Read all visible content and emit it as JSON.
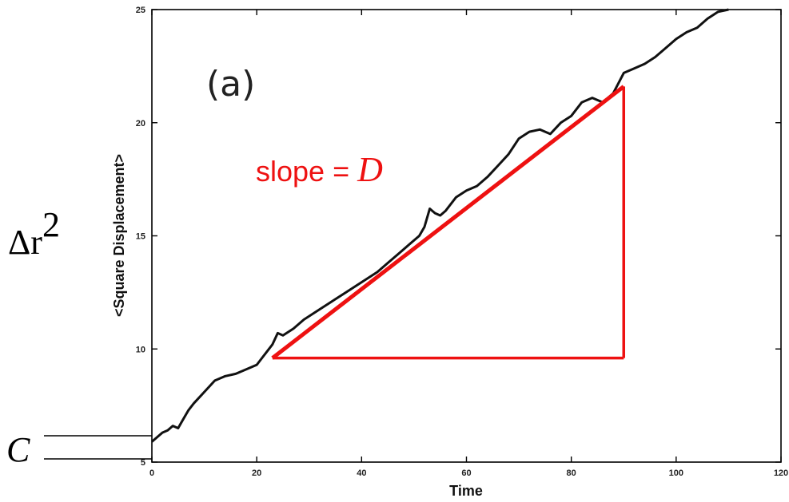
{
  "chart_data": {
    "type": "line",
    "panel_label": "(a)",
    "xlabel": "Time",
    "ylabel": "<Square Displacement>",
    "xlim": [
      0,
      120
    ],
    "ylim": [
      5,
      25
    ],
    "x_ticks": [
      "0",
      "20",
      "40",
      "60",
      "80",
      "100",
      "120"
    ],
    "y_ticks": [
      "5",
      "10",
      "15",
      "20",
      "25"
    ],
    "series": [
      {
        "x": [
          0,
          1,
          2,
          3,
          4,
          5,
          6,
          7,
          8,
          10,
          12,
          14,
          16,
          18,
          20,
          21,
          22,
          23,
          24,
          25,
          27,
          29,
          31,
          33,
          35,
          37,
          39,
          41,
          43,
          45,
          47,
          49,
          51,
          52,
          53,
          54,
          55,
          56,
          58,
          60,
          62,
          64,
          66,
          68,
          70,
          72,
          74,
          76,
          78,
          80,
          82,
          84,
          86,
          88,
          90,
          92,
          94,
          96,
          98,
          100,
          102,
          104,
          106,
          108,
          110
        ],
        "y": [
          5.9,
          6.1,
          6.3,
          6.4,
          6.6,
          6.5,
          6.9,
          7.3,
          7.6,
          8.1,
          8.6,
          8.8,
          8.9,
          9.1,
          9.3,
          9.6,
          9.9,
          10.2,
          10.7,
          10.6,
          10.9,
          11.3,
          11.6,
          11.9,
          12.2,
          12.5,
          12.8,
          13.1,
          13.4,
          13.8,
          14.2,
          14.6,
          15.0,
          15.4,
          16.2,
          16.0,
          15.9,
          16.1,
          16.7,
          17.0,
          17.2,
          17.6,
          18.1,
          18.6,
          19.3,
          19.6,
          19.7,
          19.5,
          20.0,
          20.3,
          20.9,
          21.1,
          20.9,
          21.3,
          22.2,
          22.4,
          22.6,
          22.9,
          23.3,
          23.7,
          24.0,
          24.2,
          24.6,
          24.9,
          25.0
        ]
      }
    ],
    "annotations": {
      "slope_label": "slope = ",
      "slope_var": "D",
      "y_variable": "Δr",
      "y_exponent": "2",
      "intercept_label": "C",
      "triangle": {
        "x_start": 23,
        "x_end": 90,
        "y_base": 9.6,
        "y_top": 21.6
      }
    },
    "colors": {
      "data": "#111111",
      "annotation": "#ee1111",
      "frame": "#000000"
    }
  }
}
